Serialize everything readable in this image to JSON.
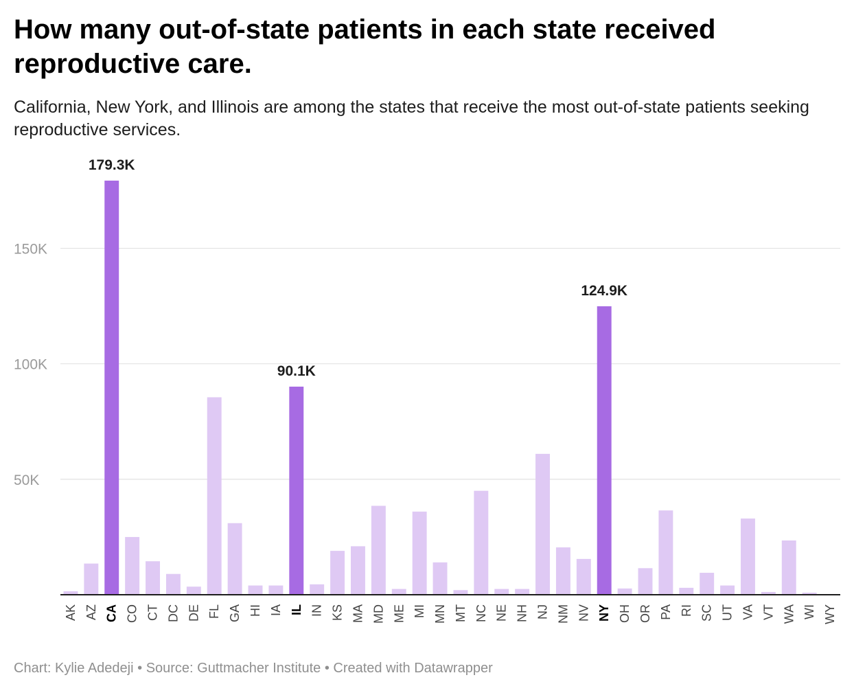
{
  "title": "How many out-of-state patients in each state received reproductive care.",
  "subtitle": "California, New York, and Illinois are among the states that receive the most out-of-state patients seeking reproductive services.",
  "footer": {
    "chart_credit": "Chart: Kylie Adedeji",
    "separator": "•",
    "source": "Source: Guttmacher Institute",
    "tool": "Created with Datawrapper"
  },
  "colors": {
    "highlight": "#a76be3",
    "base": "#dfc9f4",
    "grid": "#e2e2e2",
    "axis": "#1d1d1d"
  },
  "chart_data": {
    "type": "bar",
    "title": "How many out-of-state patients in each state received reproductive care.",
    "xlabel": "",
    "ylabel": "",
    "ylim": [
      0,
      180000
    ],
    "y_ticks": [
      50000,
      100000,
      150000
    ],
    "y_tick_labels": [
      "50K",
      "100K",
      "150K"
    ],
    "grid": true,
    "categories": [
      "AK",
      "AZ",
      "CA",
      "CO",
      "CT",
      "DC",
      "DE",
      "FL",
      "GA",
      "HI",
      "IA",
      "IL",
      "IN",
      "KS",
      "MA",
      "MD",
      "ME",
      "MI",
      "MN",
      "MT",
      "NC",
      "NE",
      "NH",
      "NJ",
      "NM",
      "NV",
      "NY",
      "OH",
      "OR",
      "PA",
      "RI",
      "SC",
      "UT",
      "VA",
      "VT",
      "WA",
      "WI",
      "WY"
    ],
    "values": [
      1500,
      13500,
      179300,
      25000,
      14500,
      9000,
      3500,
      85500,
      31000,
      4000,
      4000,
      90100,
      4500,
      19000,
      21000,
      38500,
      2500,
      36000,
      14000,
      2000,
      45000,
      2500,
      2500,
      61000,
      20500,
      15500,
      124900,
      2700,
      11500,
      36500,
      3000,
      9500,
      4000,
      33000,
      1200,
      23500,
      900,
      300
    ],
    "highlighted": [
      "CA",
      "IL",
      "NY"
    ],
    "value_labels": [
      {
        "category": "CA",
        "text": "179.3K"
      },
      {
        "category": "IL",
        "text": "90.1K"
      },
      {
        "category": "NY",
        "text": "124.9K"
      }
    ]
  }
}
